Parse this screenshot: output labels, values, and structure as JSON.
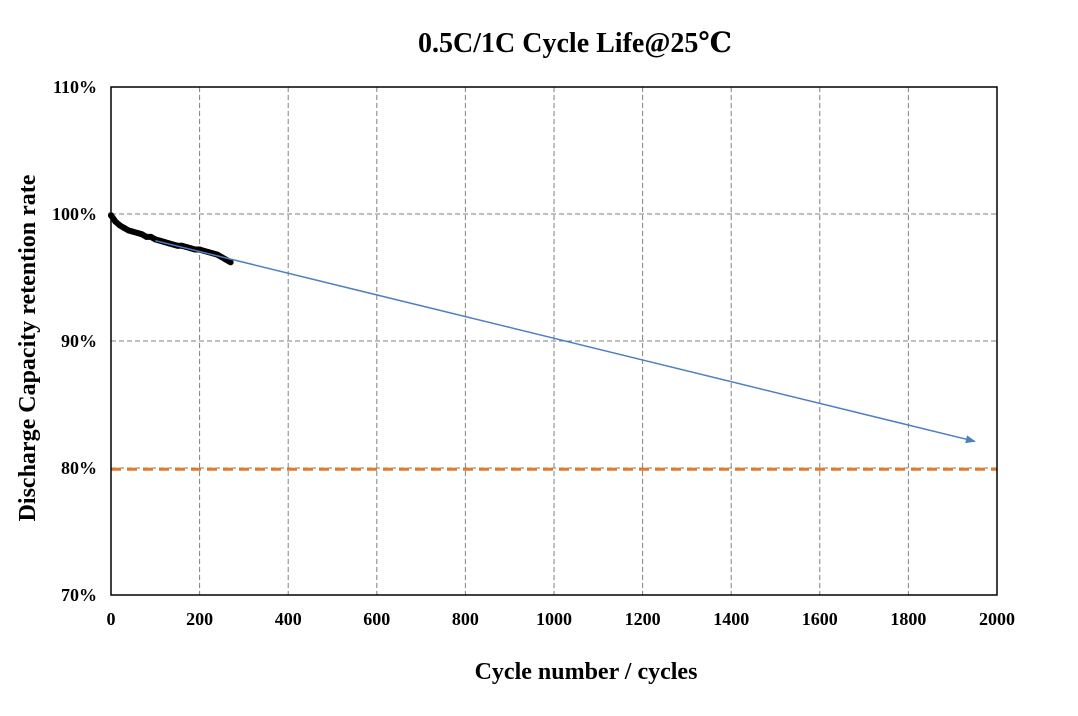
{
  "chart_data": {
    "type": "line",
    "title": "0.5C/1C Cycle Life@25℃",
    "xlabel": "Cycle number / cycles",
    "ylabel": "Discharge Capacity  retention rate",
    "xlim": [
      0,
      2000
    ],
    "ylim": [
      70,
      110
    ],
    "x_ticks": [
      0,
      200,
      400,
      600,
      800,
      1000,
      1200,
      1400,
      1600,
      1800,
      2000
    ],
    "x_tick_labels": [
      "0",
      "200",
      "400",
      "600",
      "800",
      "1000",
      "1200",
      "1400",
      "1600",
      "1800",
      "2000"
    ],
    "y_ticks": [
      70,
      80,
      90,
      100,
      110
    ],
    "y_tick_labels": [
      "70%",
      "80%",
      "90%",
      "100%",
      "110%"
    ],
    "grid": true,
    "series": [
      {
        "kind": "measured",
        "color": "#000000",
        "x": [
          0,
          10,
          20,
          30,
          40,
          50,
          60,
          70,
          80,
          90,
          100,
          110,
          120,
          130,
          140,
          150,
          160,
          170,
          180,
          190,
          200,
          210,
          220,
          230,
          240,
          250,
          260,
          270
        ],
        "y": [
          99.9,
          99.4,
          99.1,
          98.9,
          98.7,
          98.6,
          98.5,
          98.4,
          98.2,
          98.2,
          98.0,
          97.9,
          97.8,
          97.7,
          97.6,
          97.5,
          97.5,
          97.4,
          97.3,
          97.2,
          97.2,
          97.1,
          97.0,
          96.9,
          96.8,
          96.6,
          96.4,
          96.2
        ]
      },
      {
        "kind": "trend-arrow",
        "color": "#4f7fc0",
        "x": [
          100,
          1950
        ],
        "y": [
          97.9,
          82.1
        ]
      },
      {
        "kind": "threshold",
        "color": "#e07b28",
        "x": [
          0,
          2000
        ],
        "y": [
          79.9,
          79.9
        ]
      }
    ]
  }
}
